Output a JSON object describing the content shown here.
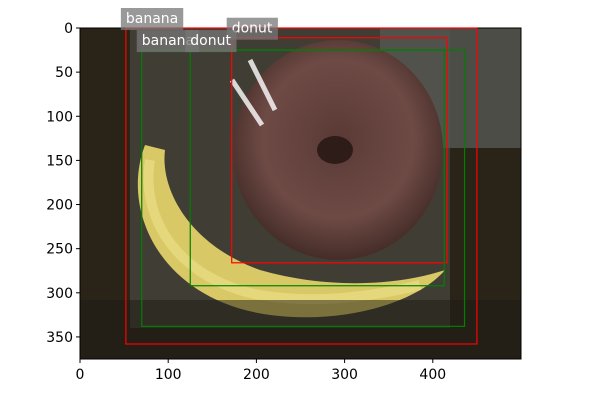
{
  "chart_data": {
    "type": "image-detections",
    "xlim": [
      0,
      500
    ],
    "ylim": [
      375,
      0
    ],
    "xticks": [
      0,
      100,
      200,
      300,
      400
    ],
    "yticks": [
      0,
      50,
      100,
      150,
      200,
      250,
      300,
      350
    ],
    "boxes": [
      {
        "label": "banana",
        "color": "#ff0000",
        "x0": 52,
        "y0": 0,
        "x1": 450,
        "y1": 358
      },
      {
        "label": "donut",
        "color": "#ff0000",
        "x0": 172,
        "y0": 11,
        "x1": 416,
        "y1": 266
      },
      {
        "label": "banana",
        "color": "#008000",
        "x0": 70,
        "y0": 25,
        "x1": 436,
        "y1": 338
      },
      {
        "label": "donut",
        "color": "#008000",
        "x0": 125,
        "y0": 25,
        "x1": 413,
        "y1": 292
      }
    ]
  }
}
